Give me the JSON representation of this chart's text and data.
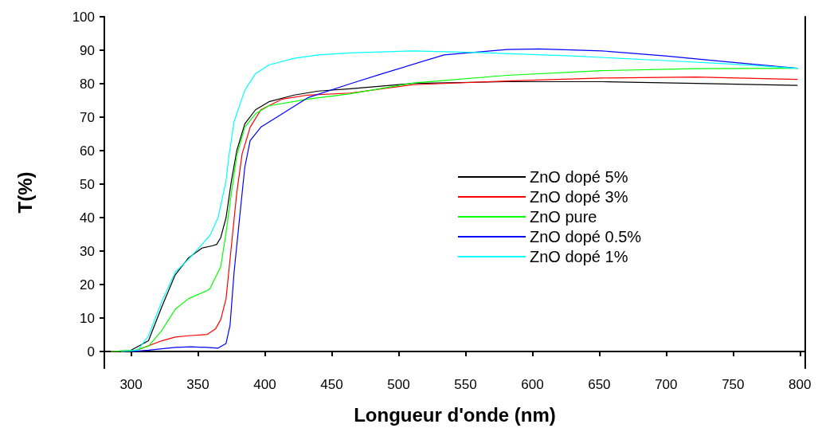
{
  "chart_data": {
    "type": "line",
    "xlabel": "Longueur d'onde (nm)",
    "ylabel": "T(%)",
    "xlim": [
      280,
      804
    ],
    "xticks": [
      300,
      350,
      400,
      450,
      500,
      550,
      600,
      650,
      700,
      750,
      800
    ],
    "ylim": [
      -5,
      100
    ],
    "yticks": [
      0,
      10,
      20,
      30,
      40,
      50,
      60,
      70,
      80,
      90,
      100
    ],
    "grid": false,
    "legend": "right",
    "marker": "none",
    "line_style": "solid",
    "series": [
      {
        "name": "ZnO dopé 5%",
        "color": "#000000",
        "x": [
          281,
          299,
          313,
          323,
          333,
          343,
          353,
          361,
          364,
          367,
          371,
          375,
          379,
          385,
          393,
          403,
          422,
          440,
          464,
          511,
          581,
          652,
          722,
          798
        ],
        "values": [
          0,
          0.2,
          3.2,
          13.4,
          22.9,
          28,
          30.9,
          31.6,
          32,
          34,
          40,
          51,
          60,
          68,
          72.2,
          74.6,
          76.6,
          77.8,
          78.5,
          80.1,
          80.6,
          80.6,
          80.1,
          79.5
        ]
      },
      {
        "name": "ZnO dopé 3%",
        "color": "#ff0000",
        "x": [
          285,
          303,
          323,
          333,
          343,
          357,
          363,
          367,
          371,
          375,
          379,
          383,
          389,
          397,
          413,
          432,
          464,
          511,
          581,
          652,
          722,
          798
        ],
        "values": [
          0,
          0.2,
          3.2,
          4.3,
          4.7,
          5.1,
          6.7,
          9.5,
          15.8,
          31.6,
          47.4,
          59,
          67,
          72.2,
          75.4,
          76.6,
          77.2,
          79.7,
          80.8,
          81.7,
          82,
          81.3
        ]
      },
      {
        "name": "ZnO pure",
        "color": "#00ff00",
        "x": [
          285,
          303,
          313,
          323,
          333,
          343,
          357,
          359,
          361,
          367,
          371,
          375,
          379,
          385,
          393,
          403,
          432,
          464,
          511,
          581,
          652,
          722,
          798
        ],
        "values": [
          0,
          0.4,
          1.6,
          6.3,
          12.6,
          15.8,
          18.2,
          18.8,
          20.5,
          25.3,
          35.5,
          47.4,
          58.5,
          67,
          71,
          73.4,
          75.4,
          77,
          80.2,
          82.5,
          83.9,
          84.5,
          84.6
        ]
      },
      {
        "name": "ZnO dopé 0.5%",
        "color": "#0000ff",
        "x": [
          300,
          313,
          333,
          345,
          357,
          365,
          371,
          374,
          377,
          381,
          385,
          389,
          397,
          413,
          432,
          464,
          487,
          534,
          581,
          605,
          652,
          699,
          746,
          798
        ],
        "values": [
          0,
          0.4,
          1.2,
          1.4,
          1.2,
          1,
          2.4,
          7.9,
          23.7,
          39.5,
          55,
          63,
          67,
          71,
          75.8,
          80,
          82.9,
          88.6,
          90.2,
          90.4,
          89.8,
          88.3,
          86.5,
          84.6
        ]
      },
      {
        "name": "ZnO dopé 1%",
        "color": "#00ffff",
        "x": [
          293,
          305,
          313,
          323,
          333,
          343,
          353,
          359,
          365,
          371,
          373,
          377,
          385,
          393,
          403,
          422,
          440,
          464,
          511,
          558,
          629,
          699,
          746,
          798
        ],
        "values": [
          0,
          0.4,
          4.7,
          15,
          23.7,
          27.6,
          32,
          34.7,
          40,
          51,
          58,
          68.7,
          78,
          83,
          85.6,
          87.6,
          88.6,
          89.2,
          89.8,
          89.3,
          88.3,
          86.9,
          85.9,
          84.6
        ]
      }
    ]
  }
}
